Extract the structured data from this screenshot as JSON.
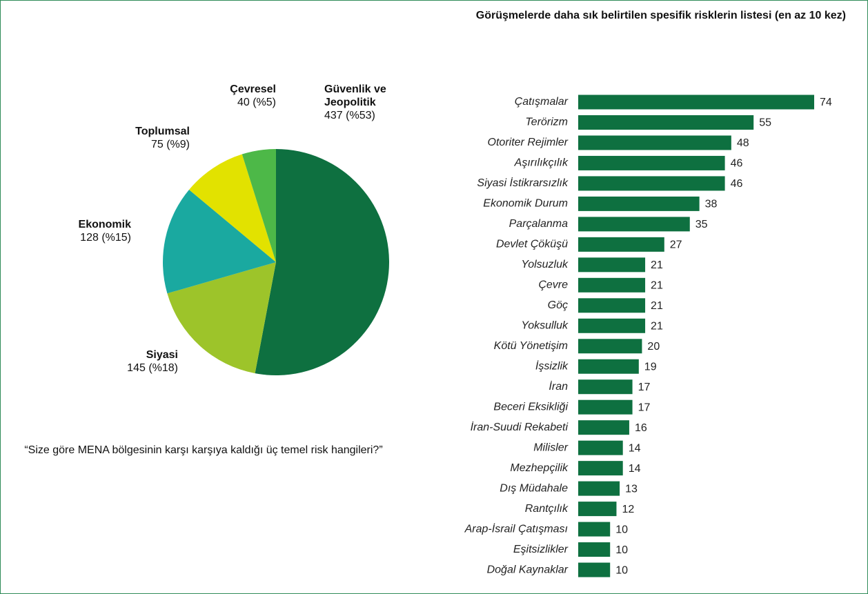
{
  "chart_data": [
    {
      "type": "pie",
      "categories": [
        "Güvenlik ve Jeopolitik",
        "Siyasi",
        "Ekonomik",
        "Toplumsal",
        "Çevresel"
      ],
      "values": [
        437,
        145,
        128,
        75,
        40
      ],
      "value_labels": [
        "437 (%53)",
        "145 (%18)",
        "128 (%15)",
        "75 (%9)",
        "40 (%5)"
      ],
      "colors": [
        "#0e7040",
        "#9dc42a",
        "#1aa9a0",
        "#e2e200",
        "#4db848"
      ],
      "annotation": "“Size göre MENA bölgesinin karşı karşıya kaldığı üç temel risk hangileri?”"
    },
    {
      "type": "bar",
      "orientation": "horizontal",
      "title": "Görüşmelerde daha sık belirtilen spesifik risklerin listesi (en az 10 kez)",
      "categories": [
        "Çatışmalar",
        "Terörizm",
        "Otoriter Rejimler",
        "Aşırılıkçılık",
        "Siyasi İstikrarsızlık",
        "Ekonomik Durum",
        "Parçalanma",
        "Devlet Çöküşü",
        "Yolsuzluk",
        "Çevre",
        "Göç",
        "Yoksulluk",
        "Kötü Yönetişim",
        "İşsizlik",
        "İran",
        "Beceri Eksikliği",
        "İran-Suudi Rekabeti",
        "Milisler",
        "Mezhepçilik",
        "Dış Müdahale",
        "Rantçılık",
        "Arap-İsrail Çatışması",
        "Eşitsizlikler",
        "Doğal Kaynaklar"
      ],
      "values": [
        74,
        55,
        48,
        46,
        46,
        38,
        35,
        27,
        21,
        21,
        21,
        21,
        20,
        19,
        17,
        17,
        16,
        14,
        14,
        13,
        12,
        10,
        10,
        10
      ],
      "color": "#0e7040"
    }
  ]
}
